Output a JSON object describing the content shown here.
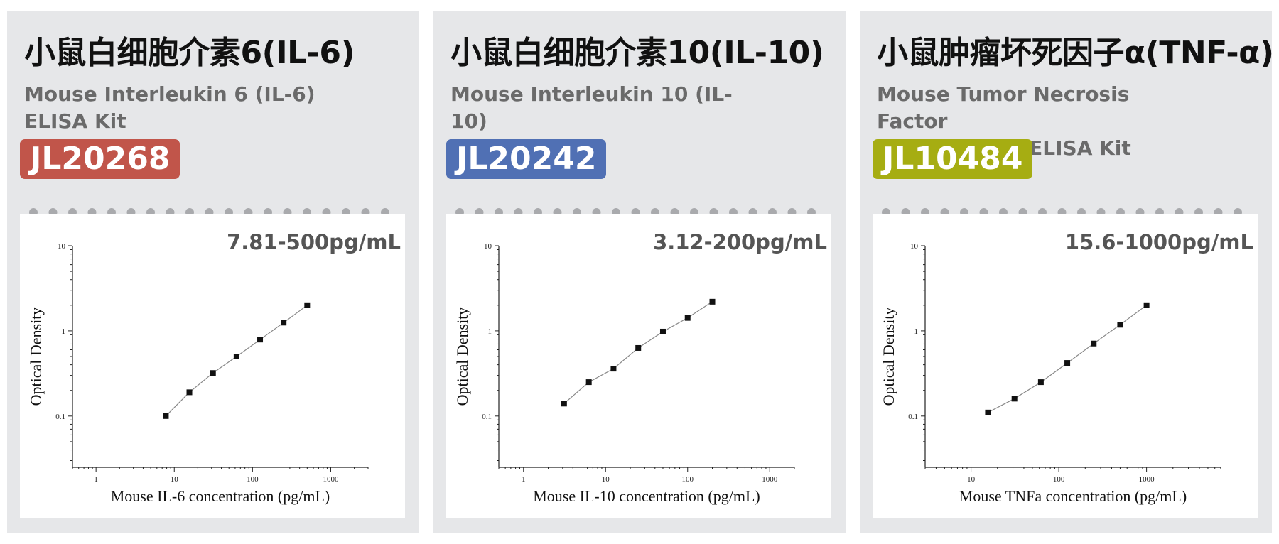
{
  "cards": [
    {
      "title": "小鼠白细胞介素6(IL-6)",
      "subtitle_line1": "Mouse Interleukin 6 (IL-6)",
      "subtitle_line2": "ELISA Kit",
      "catalog": "JL20268",
      "badge_color": "#c1554a",
      "range_label": "7.81-500pg/mL"
    },
    {
      "title": "小鼠白细胞介素10(IL-10)",
      "subtitle_line1": "Mouse Interleukin 10 (IL-10)",
      "subtitle_line2": "ELISA Kit",
      "catalog": "JL20242",
      "badge_color": "#5070b4",
      "range_label": "3.12-200pg/mL"
    },
    {
      "title": "小鼠肿瘤坏死因子α(TNF-α)",
      "subtitle_line1": "Mouse Tumor Necrosis Factor",
      "subtitle_line2": "Alpha (TNFa) ELISA Kit",
      "catalog": "JL10484",
      "badge_color": "#a6ad12",
      "range_label": "15.6-1000pg/mL"
    }
  ],
  "chart_data": [
    {
      "type": "scatter",
      "xlabel": "Mouse IL-6 concentration (pg/mL)",
      "ylabel": "Optical Density",
      "x_scale": "log",
      "y_scale": "log",
      "xlim": [
        0.5,
        3000
      ],
      "ylim": [
        0.025,
        10
      ],
      "x_ticks": [
        1,
        10,
        100,
        1000
      ],
      "x_tick_labels": [
        "1",
        "10",
        "100",
        "1000"
      ],
      "y_ticks": [
        0.1,
        1,
        10
      ],
      "y_tick_labels": [
        "0.1",
        "1",
        "10"
      ],
      "grid": false,
      "fit_line": true,
      "x": [
        7.81,
        15.6,
        31.25,
        62.5,
        125,
        250,
        500
      ],
      "y": [
        0.1,
        0.19,
        0.32,
        0.5,
        0.79,
        1.25,
        2.0
      ]
    },
    {
      "type": "scatter",
      "xlabel": "Mouse IL-10 concentration (pg/mL)",
      "ylabel": "Optical Density",
      "x_scale": "log",
      "y_scale": "log",
      "xlim": [
        0.5,
        2000
      ],
      "ylim": [
        0.025,
        10
      ],
      "x_ticks": [
        1,
        10,
        100,
        1000
      ],
      "x_tick_labels": [
        "1",
        "10",
        "100",
        "1000"
      ],
      "y_ticks": [
        0.1,
        1,
        10
      ],
      "y_tick_labels": [
        "0.1",
        "1",
        "10"
      ],
      "grid": false,
      "fit_line": true,
      "x": [
        3.12,
        6.25,
        12.5,
        25,
        50,
        100,
        200
      ],
      "y": [
        0.14,
        0.25,
        0.36,
        0.63,
        0.98,
        1.42,
        2.2
      ]
    },
    {
      "type": "scatter",
      "xlabel": "Mouse TNFa concentration (pg/mL)",
      "ylabel": "Optical Density",
      "x_scale": "log",
      "y_scale": "log",
      "xlim": [
        3,
        7000
      ],
      "ylim": [
        0.025,
        10
      ],
      "x_ticks": [
        10,
        100,
        1000
      ],
      "x_tick_labels": [
        "10",
        "100",
        "1000"
      ],
      "y_ticks": [
        0.1,
        1,
        10
      ],
      "y_tick_labels": [
        "0.1",
        "1",
        "10"
      ],
      "grid": false,
      "fit_line": true,
      "x": [
        15.6,
        31.25,
        62.5,
        125,
        250,
        500,
        1000
      ],
      "y": [
        0.11,
        0.16,
        0.25,
        0.42,
        0.71,
        1.18,
        2.0
      ]
    }
  ]
}
